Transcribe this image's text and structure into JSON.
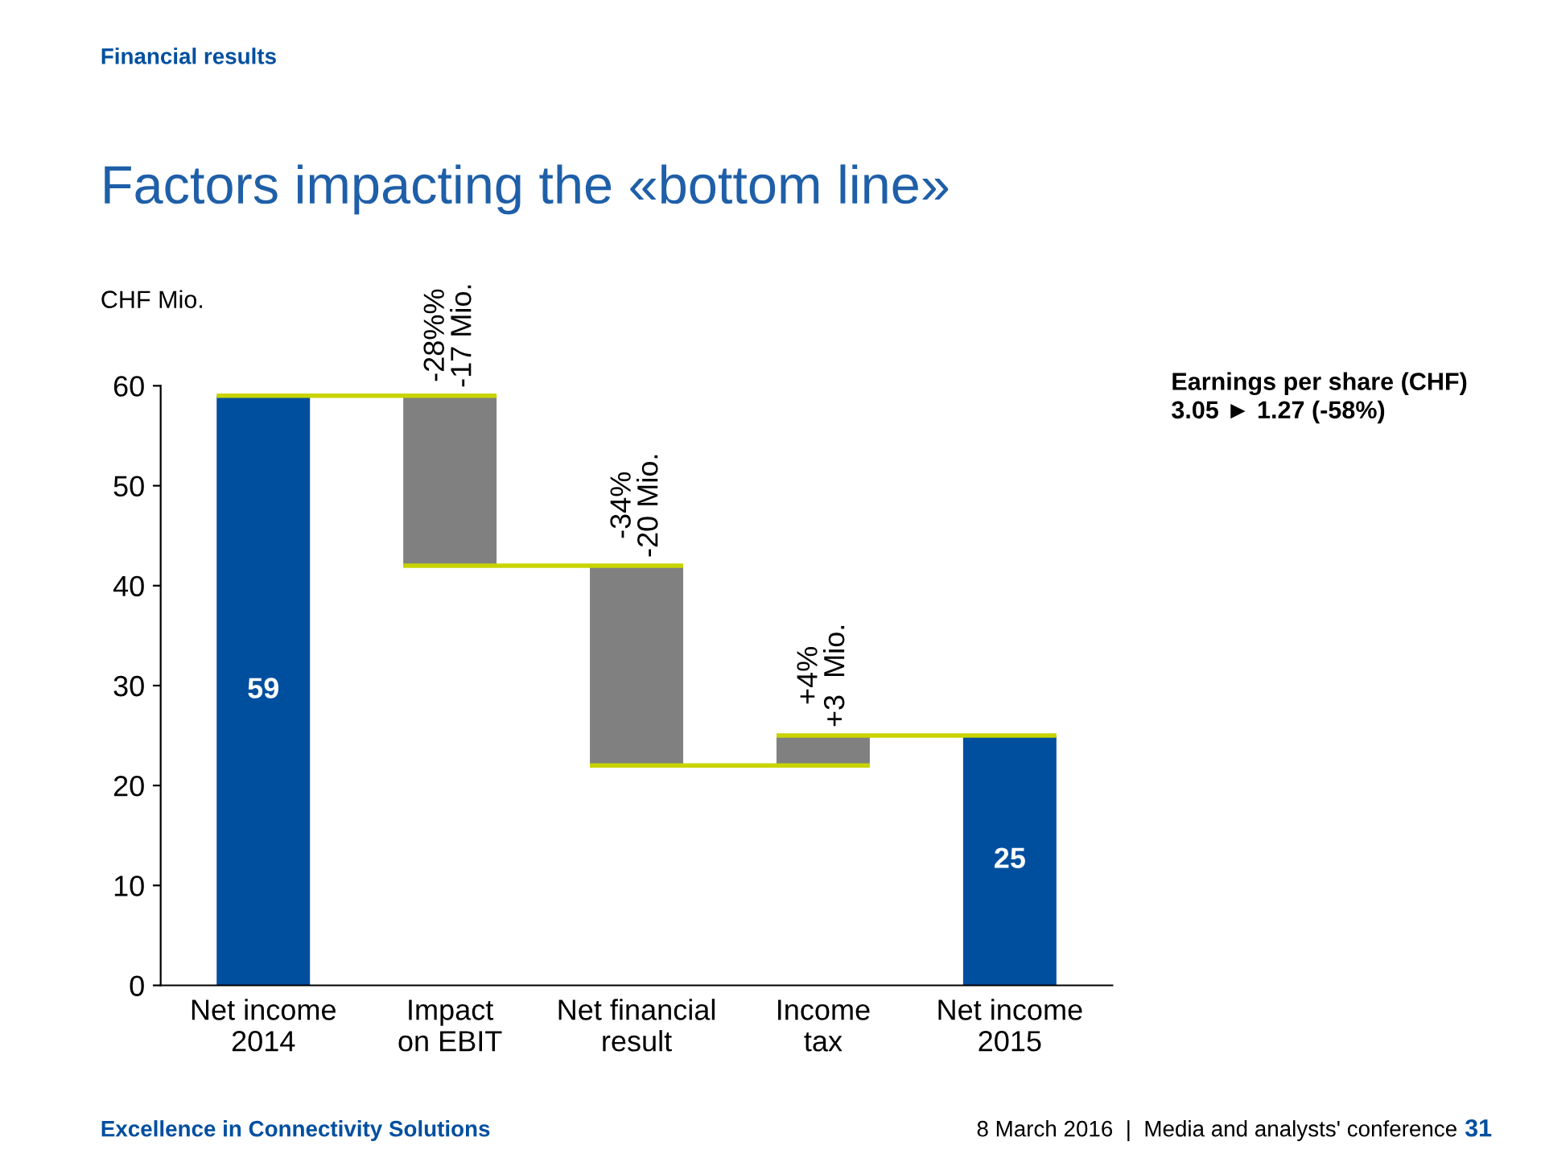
{
  "chart_data": {
    "type": "bar",
    "title": "Factors impacting the «bottom line»",
    "ylabel": "CHF Mio.",
    "categories": [
      "Net income\n2014",
      "Impact\non EBIT",
      "Net financial\nresult",
      "Income\ntax",
      "Net income\n2015"
    ],
    "values": [
      59,
      -17,
      -20,
      3,
      25
    ],
    "base": [
      0,
      59,
      42,
      22,
      0
    ],
    "colors": [
      "#004f9f",
      "#808080",
      "#808080",
      "#808080",
      "#004f9f"
    ],
    "value_labels": [
      "59",
      "-28%%\n-17 Mio.",
      "-34%\n-20 Mio.",
      "+4%\n+3  Mio.",
      "25"
    ],
    "ylim": [
      0,
      60
    ],
    "yticks": [
      0,
      10,
      20,
      30,
      40,
      50,
      60
    ],
    "grid": false,
    "ref_lines": [
      {
        "axis": "y",
        "value": 59,
        "color": "#c8d400"
      },
      {
        "axis": "y",
        "value": 42,
        "color": "#c8d400"
      },
      {
        "axis": "y",
        "value": 22,
        "color": "#c8d400"
      },
      {
        "axis": "y",
        "value": 25,
        "color": "#c8d400"
      }
    ],
    "annotations": [
      "Financial results",
      "Earnings per share (CHF)\n3.05 ► 1.27 (-58%)",
      "Excellence in Connectivity Solutions",
      "8 March 2016  |  Media and analysts' conference",
      "31"
    ]
  }
}
